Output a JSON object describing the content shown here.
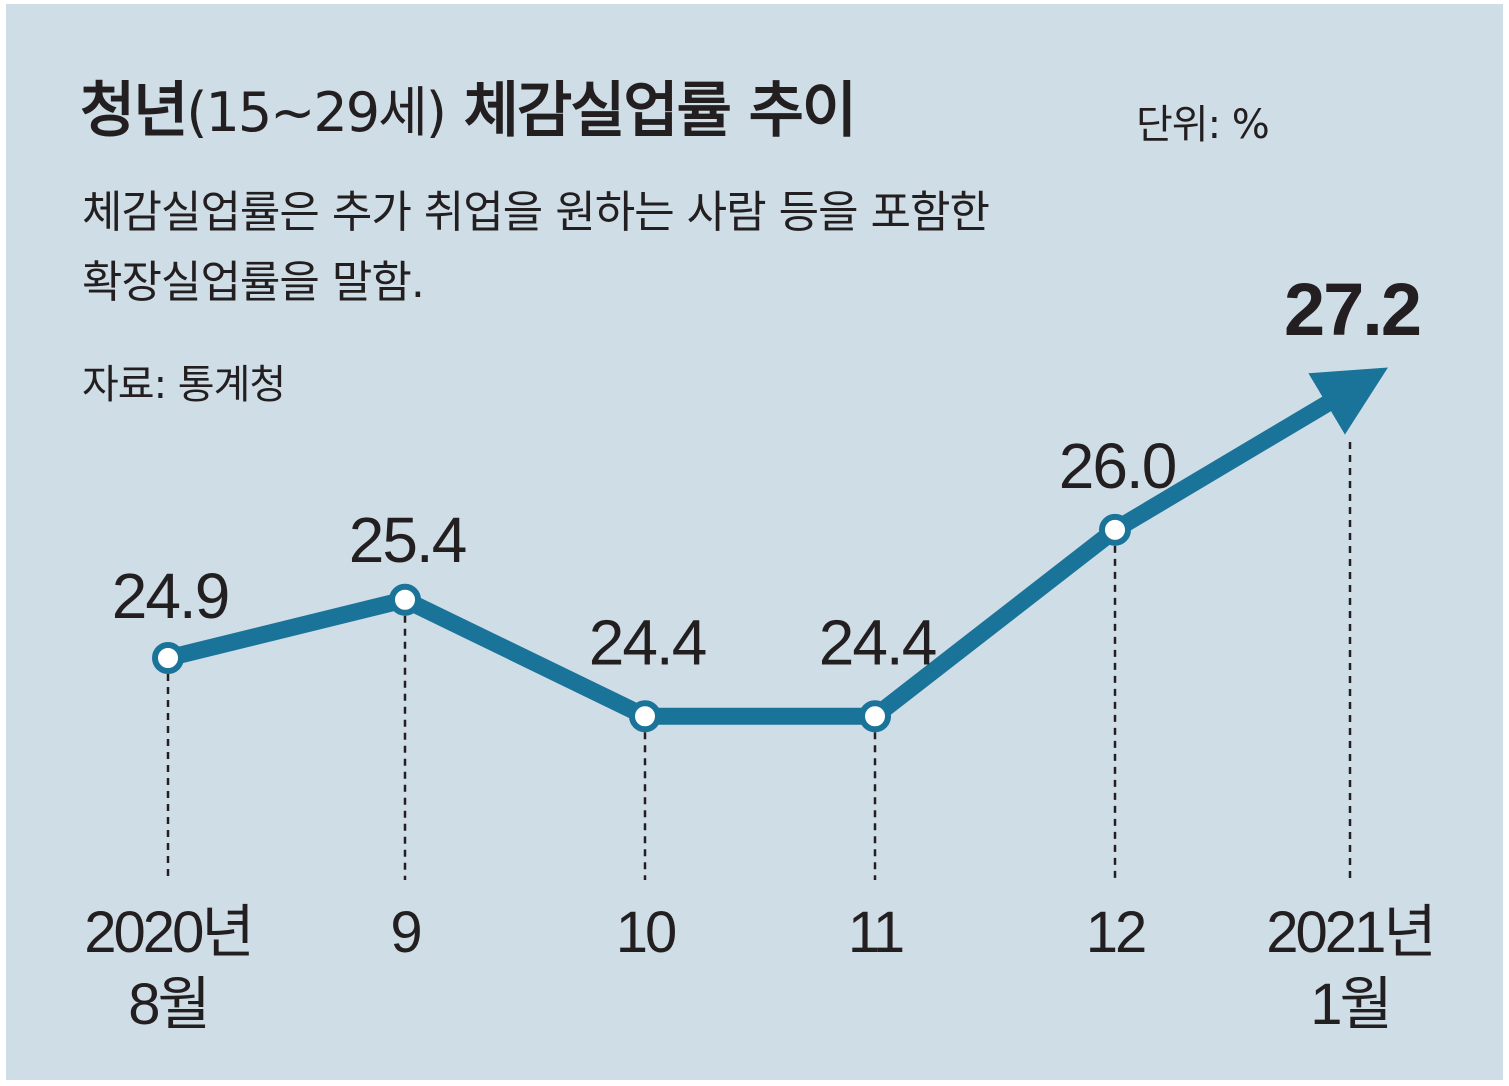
{
  "header": {
    "title_a": "청년",
    "title_paren": "(15~29세)",
    "title_b": " 체감실업률 추이",
    "unit": "단위: %",
    "description_line1": "체감실업률은 추가 취업을 원하는 사람 등을 포함한",
    "description_line2": "확장실업률을 말함.",
    "source": "자료: 통계청"
  },
  "colors": {
    "background": "#cfdde6",
    "line": "#1a7399",
    "text": "#231f20"
  },
  "chart_data": {
    "type": "line",
    "categories": [
      [
        "2020년",
        "8월"
      ],
      [
        "9"
      ],
      [
        "10"
      ],
      [
        "11"
      ],
      [
        "12"
      ],
      [
        "2021년",
        "1월"
      ]
    ],
    "values": [
      24.9,
      25.4,
      24.4,
      24.4,
      26.0,
      27.2
    ],
    "value_labels": [
      "24.9",
      "25.4",
      "24.4",
      "24.4",
      "26.0",
      "27.2"
    ],
    "last_point_marker": "arrow",
    "unit": "%",
    "grid": false,
    "dropped_guides": true
  }
}
